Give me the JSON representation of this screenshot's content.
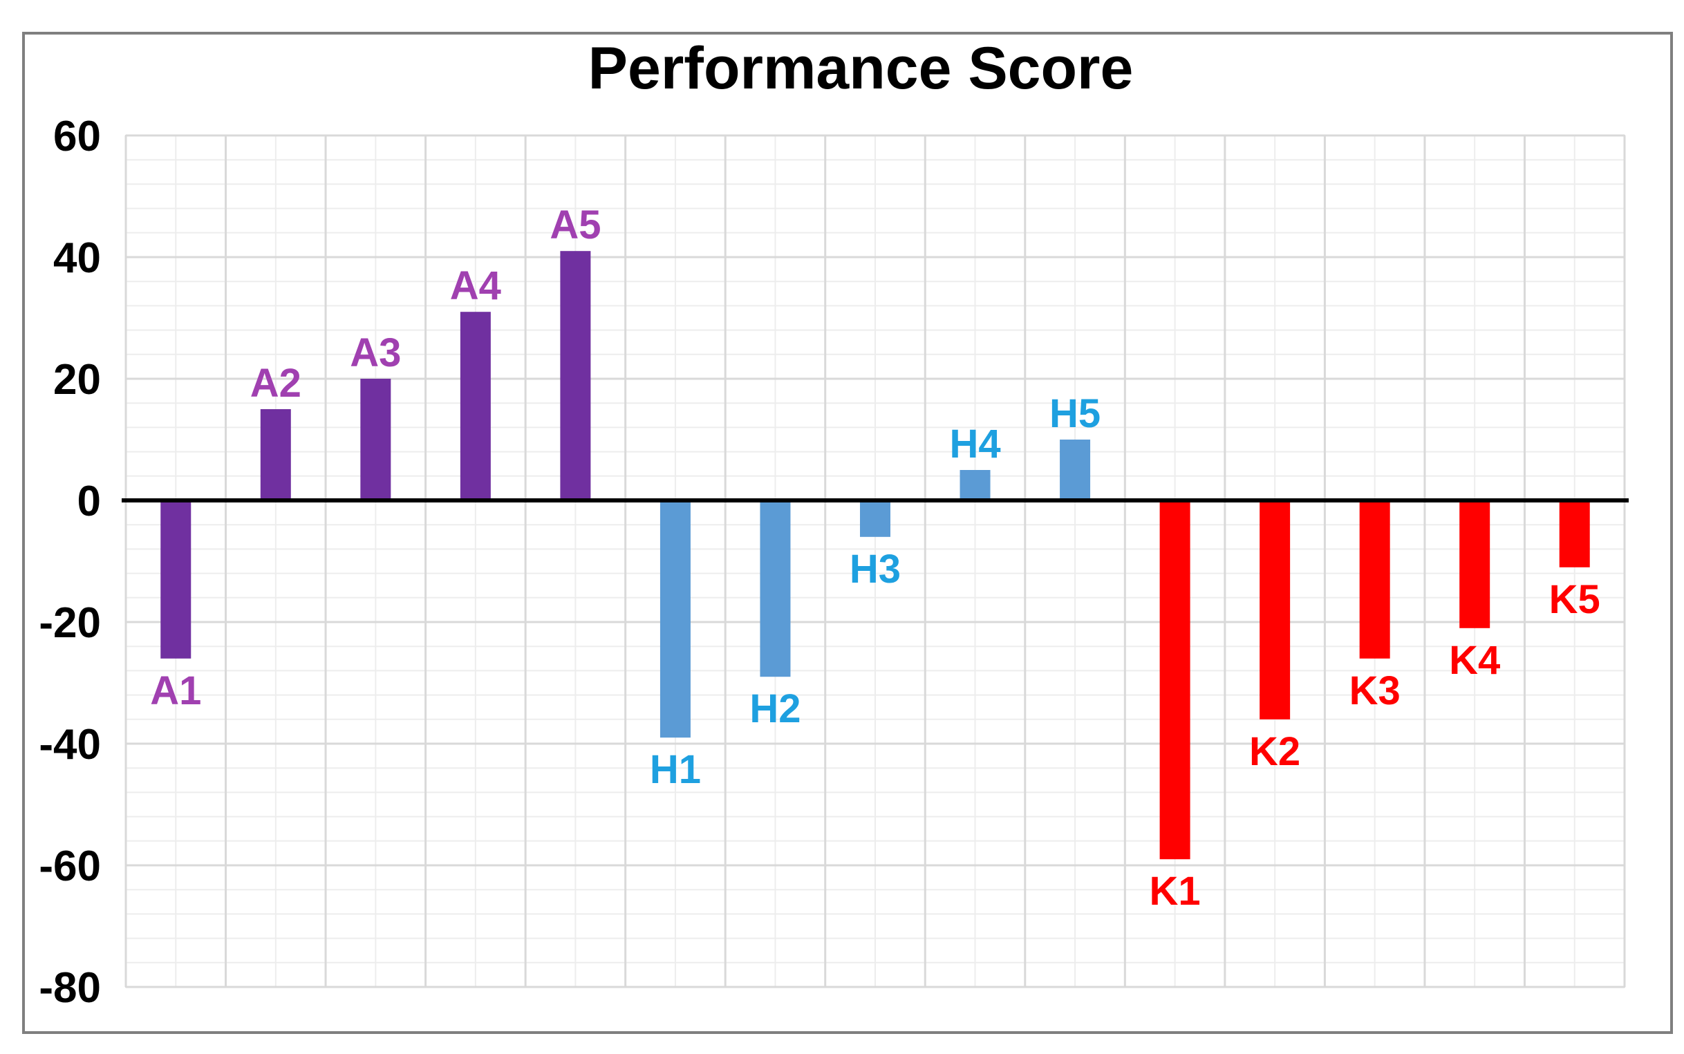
{
  "chart_data": {
    "type": "bar",
    "title": "Performance Score",
    "xlabel": "",
    "ylabel": "",
    "ylim": [
      -80,
      60
    ],
    "yticks": [
      60,
      40,
      20,
      0,
      -20,
      -40,
      -60,
      -80
    ],
    "grid": true,
    "legend": "none",
    "categories": [
      "A1",
      "A2",
      "A3",
      "A4",
      "A5",
      "H1",
      "H2",
      "H3",
      "H4",
      "H5",
      "K1",
      "K2",
      "K3",
      "K4",
      "K5"
    ],
    "values": [
      -26,
      15,
      20,
      31,
      41,
      -39,
      -29,
      -6,
      5,
      10,
      -59,
      -36,
      -26,
      -21,
      -11
    ],
    "colors": {
      "A": {
        "bar": "#7030A0",
        "label": "#A040B0"
      },
      "H": {
        "bar": "#5B9BD5",
        "label": "#1EA0E0"
      },
      "K": {
        "bar": "#FF0000",
        "label": "#FF0000"
      }
    },
    "gridline_color": "#D9D9D9",
    "zero_line_color": "#000000",
    "frame_color": "#7F7F7F"
  }
}
